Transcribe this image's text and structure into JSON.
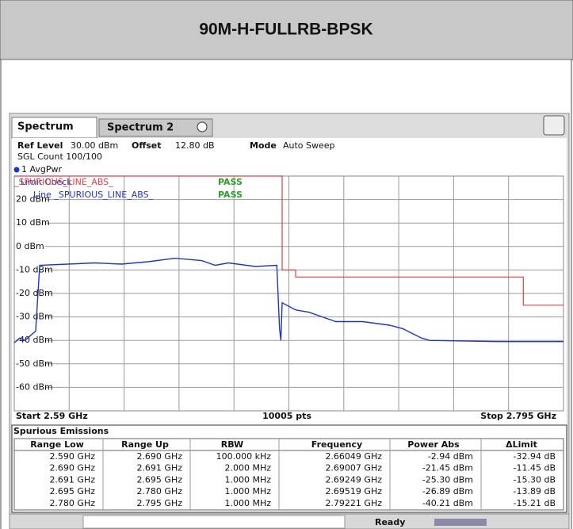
{
  "header": {
    "title": "90M-H-FULLRB-BPSK"
  },
  "tabs": [
    "Spectrum",
    "Spectrum 2"
  ],
  "settings": {
    "ref_level_label": "Ref Level",
    "ref_level": "30.00 dBm",
    "offset_label": "Offset",
    "offset": "12.80 dB",
    "mode_label": "Mode",
    "mode": "Auto Sweep",
    "count": "SGL Count 100/100",
    "trace_label": "1 AvgPwr"
  },
  "limit_check_title": "Limit Check",
  "limit_check": [
    {
      "name": "_SPURIOUS_LINE_ABS_",
      "result": "PASS"
    },
    {
      "name": "Line _SPURIOUS_LINE_ABS_",
      "result": "PASS"
    }
  ],
  "chart_data": {
    "type": "line",
    "xlim": [
      2.59,
      2.795
    ],
    "ylim": [
      -70,
      30
    ],
    "yticks": [
      {
        "value": 20,
        "label": "20 dBm"
      },
      {
        "value": 10,
        "label": "10 dBm"
      },
      {
        "value": 0,
        "label": "0 dBm"
      },
      {
        "value": -10,
        "label": "-10 dBm"
      },
      {
        "value": -20,
        "label": "-20 dBm"
      },
      {
        "value": -30,
        "label": "-30 dBm"
      },
      {
        "value": -40,
        "label": "-40 dBm"
      },
      {
        "value": -50,
        "label": "-50 dBm"
      },
      {
        "value": -60,
        "label": "-60 dBm"
      }
    ],
    "grid": true,
    "series": [
      {
        "color": "#1f35c8",
        "x": [
          2.59,
          2.592,
          2.594,
          2.598,
          2.5995,
          2.61,
          2.62,
          2.63,
          2.64,
          2.65,
          2.655,
          2.66,
          2.665,
          2.67,
          2.68,
          2.688,
          2.689,
          2.6895,
          2.69,
          2.695,
          2.7,
          2.705,
          2.71,
          2.72,
          2.73,
          2.735,
          2.742,
          2.745,
          2.77,
          2.795
        ],
        "values": [
          -41,
          -39,
          -40,
          -36,
          -8,
          -7.5,
          -7,
          -7.5,
          -6.5,
          -5,
          -5.5,
          -6,
          -8,
          -7,
          -8.5,
          -8,
          -35,
          -40,
          -24,
          -27,
          -28,
          -30,
          -32,
          -32,
          -33.5,
          -35,
          -39,
          -40,
          -40.5,
          -40.5
        ]
      },
      {
        "color": "#e04040",
        "x": [
          2.59,
          2.69,
          2.69,
          2.695,
          2.695,
          2.78,
          2.78,
          2.795
        ],
        "values": [
          30,
          30,
          -10,
          -10,
          -13,
          -13,
          -25,
          -25
        ]
      }
    ]
  },
  "footer": {
    "start": "Start 2.59 GHz",
    "points": "10005 pts",
    "stop": "Stop 2.795 GHz"
  },
  "table": {
    "title": "Spurious Emissions",
    "headers": [
      "Range Low",
      "Range Up",
      "RBW",
      "Frequency",
      "Power Abs",
      "ΔLimit"
    ],
    "rows": [
      [
        "2.590 GHz",
        "2.690 GHz",
        "100.000 kHz",
        "2.66049 GHz",
        "-2.94 dBm",
        "-32.94 dB"
      ],
      [
        "2.690 GHz",
        "2.691 GHz",
        "2.000 MHz",
        "2.69007 GHz",
        "-21.45 dBm",
        "-11.45 dB"
      ],
      [
        "2.691 GHz",
        "2.695 GHz",
        "1.000 MHz",
        "2.69249 GHz",
        "-25.30 dBm",
        "-15.30 dB"
      ],
      [
        "2.695 GHz",
        "2.780 GHz",
        "1.000 MHz",
        "2.69519 GHz",
        "-26.89 dBm",
        "-13.89 dB"
      ],
      [
        "2.780 GHz",
        "2.795 GHz",
        "1.000 MHz",
        "2.79221 GHz",
        "-40.21 dBm",
        "-15.21 dB"
      ]
    ]
  },
  "status": "Ready"
}
